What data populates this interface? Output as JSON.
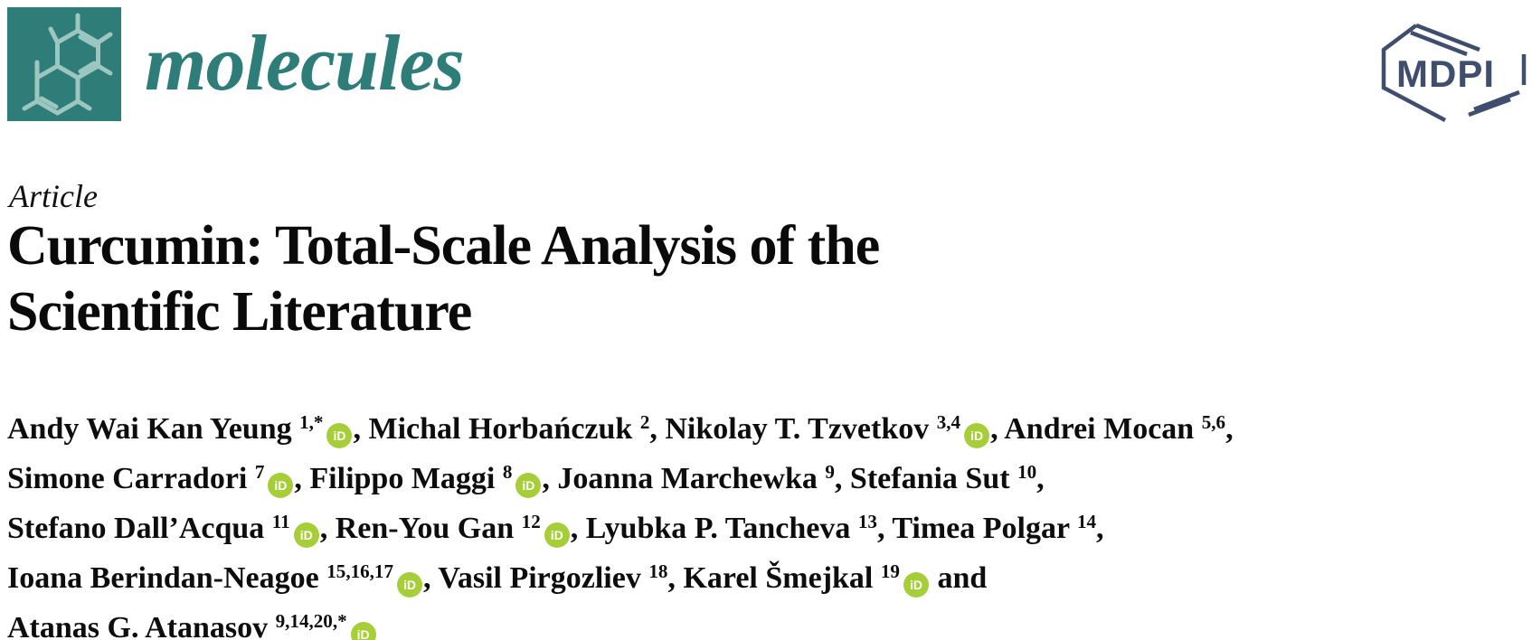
{
  "colors": {
    "journal_teal": "#2e7d78",
    "logo_background": "#2e7d78",
    "logo_structure": "#9ec6c1",
    "mdpi_blue": "#404e6e",
    "orcid_green": "#a6ce39",
    "title_black": "#0a0a0a"
  },
  "journal": {
    "name": "molecules"
  },
  "publisher": {
    "name": "MDPI"
  },
  "article": {
    "type_label": "Article",
    "title_line1": "Curcumin: Total-Scale Analysis of the",
    "title_line2": "Scientific Literature"
  },
  "authors": {
    "orcid_label": "iD",
    "lines": [
      [
        {
          "name": "Andy Wai Kan Yeung",
          "sup": "1,*",
          "orcid": true,
          "after": ", "
        },
        {
          "name": "Michal Horbańczuk",
          "sup": "2",
          "orcid": false,
          "after": ", "
        },
        {
          "name": "Nikolay T. Tzvetkov",
          "sup": "3,4",
          "orcid": true,
          "after": ", "
        },
        {
          "name": "Andrei Mocan",
          "sup": "5,6",
          "orcid": false,
          "after": ","
        }
      ],
      [
        {
          "name": "Simone Carradori",
          "sup": "7",
          "orcid": true,
          "after": ", "
        },
        {
          "name": "Filippo Maggi",
          "sup": "8",
          "orcid": true,
          "after": ", "
        },
        {
          "name": "Joanna Marchewka",
          "sup": "9",
          "orcid": false,
          "after": ", "
        },
        {
          "name": "Stefania Sut",
          "sup": "10",
          "orcid": false,
          "after": ","
        }
      ],
      [
        {
          "name": "Stefano Dall’Acqua",
          "sup": "11",
          "orcid": true,
          "after": ", "
        },
        {
          "name": "Ren-You Gan",
          "sup": "12",
          "orcid": true,
          "after": ", "
        },
        {
          "name": "Lyubka P. Tancheva",
          "sup": "13",
          "orcid": false,
          "after": ", "
        },
        {
          "name": "Timea Polgar",
          "sup": "14",
          "orcid": false,
          "after": ","
        }
      ],
      [
        {
          "name": "Ioana Berindan-Neagoe",
          "sup": "15,16,17",
          "orcid": true,
          "after": ", "
        },
        {
          "name": "Vasil Pirgozliev",
          "sup": "18",
          "orcid": false,
          "after": ", "
        },
        {
          "name": "Karel Šmejkal",
          "sup": "19",
          "orcid": true,
          "after": " and"
        }
      ],
      [
        {
          "name": "Atanas G. Atanasov",
          "sup": "9,14,20,*",
          "orcid": true,
          "after": ""
        }
      ]
    ]
  }
}
